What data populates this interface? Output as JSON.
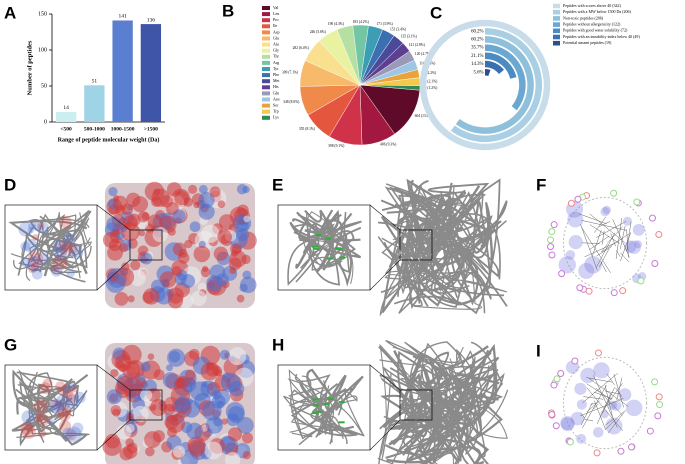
{
  "panel_labels": [
    "A",
    "B",
    "C",
    "D",
    "E",
    "F",
    "G",
    "H",
    "I"
  ],
  "chart_data": [
    {
      "type": "bar",
      "categories": [
        "<500",
        "500-1000",
        "1000-1500",
        ">1500"
      ],
      "values": [
        14,
        51,
        141,
        136
      ],
      "colors": [
        "#cdeef0",
        "#9fd3e6",
        "#5b7fd0",
        "#3f56a8"
      ],
      "y_label": "Number of peptides",
      "x_label": "Range of peptide molecular weight (Da)",
      "ylim": [
        0,
        150
      ],
      "yticks": [
        0,
        50,
        100,
        150
      ]
    },
    {
      "type": "pie",
      "categories": [
        "Val",
        "Leu",
        "Pro",
        "Ile",
        "Asp",
        "Glu",
        "Ala",
        "Gly",
        "Thr",
        "Arg",
        "Tyr",
        "Phe",
        "Met",
        "His",
        "Gln",
        "Asn",
        "Ser",
        "Trp",
        "Lys"
      ],
      "values": [
        604,
        406,
        398,
        355,
        348,
        309,
        282,
        246,
        190,
        183,
        171,
        151,
        135,
        121,
        120,
        114,
        98,
        94,
        52
      ],
      "value_labels": [
        "604 (13.8%)",
        "406 (9.3%)",
        "398 (9.1%)",
        "355 (8.1%)",
        "348 (8.0%)",
        "309 (7.1%)",
        "282 (6.4%)",
        "246 (5.6%)",
        "190 (4.3%)",
        "183 (4.2%)",
        "171 (3.9%)",
        "151 (3.4%)",
        "135 (3.1%)",
        "121 (2.8%)",
        "120 (2.7%)",
        "114 (2.6%)",
        "98 (2.2%)",
        "94 (2.1%)",
        "52 (1.2%)"
      ],
      "colors": [
        "#5e0a28",
        "#a2183f",
        "#d0324a",
        "#e4573e",
        "#f08a4b",
        "#f7b96a",
        "#f8e08e",
        "#e8f2a0",
        "#b6e0a2",
        "#72c6a4",
        "#3d9db4",
        "#3b6fb0",
        "#4b4a9a",
        "#5e3f8f",
        "#9a9ab8",
        "#9cc6e4",
        "#e8a33c",
        "#f2c94c",
        "#2e8b57"
      ]
    },
    {
      "type": "radial_bar",
      "categories": [
        "Peptides with scores above 40 (342)",
        "Peptides with a MW below 1500 Da (206)",
        "Non-toxic peptides (206)",
        "Peptides without allergenicity (122)",
        "Peptides with good water solubility (72)",
        "Peptides with an instability index below 40 (49)",
        "Potential umami peptides (19)"
      ],
      "values": [
        100,
        60.2,
        60.2,
        35.7,
        21.1,
        14.3,
        5.6
      ],
      "value_labels": [
        null,
        "60.2%",
        "60.2%",
        "35.7%",
        "21.1%",
        "14.3%",
        "5.6%"
      ],
      "colors": [
        "#c9dce9",
        "#a8cfe3",
        "#8ec0dc",
        "#6aa8d2",
        "#4a8cc2",
        "#3a6fb0",
        "#2a4f90"
      ]
    }
  ]
}
